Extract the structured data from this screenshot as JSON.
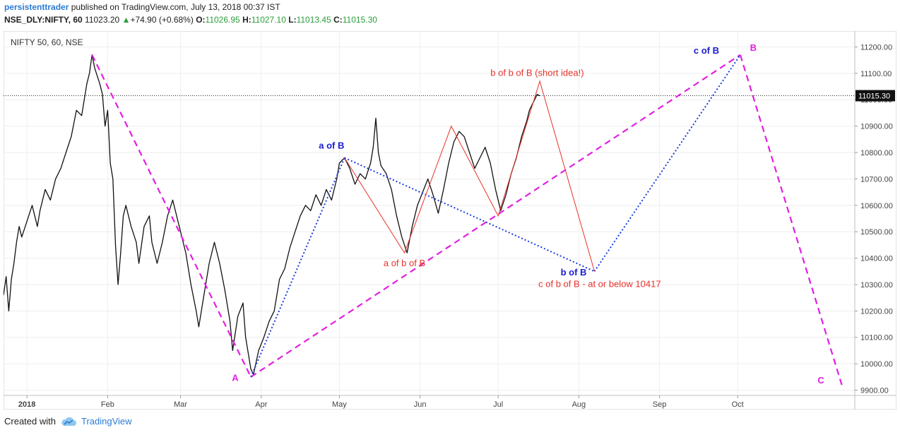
{
  "header": {
    "author": "persistenttrader",
    "published": "published on TradingView.com, July 13, 2018 00:37 IST",
    "symbol": "NSE_DLY:NIFTY, 60",
    "last": "11023.20",
    "change": "+74.90 (+0.68%)",
    "o_label": "O:",
    "o_value": "11026.95",
    "h_label": "H:",
    "h_value": "11027.10",
    "l_label": "L:",
    "l_value": "11013.45",
    "c_label": "C:",
    "c_value": "11015.30",
    "up_color": "#2a9d3a"
  },
  "footer": {
    "created_with": "Created with",
    "brand": "TradingView"
  },
  "chart_data": {
    "type": "line",
    "title": "NIFTY 50, 60, NSE",
    "ylim": [
      9880,
      11260
    ],
    "xlim_days": [
      -9,
      318
    ],
    "y_ticks": [
      9900,
      10000,
      10100,
      10200,
      10300,
      10400,
      10500,
      10600,
      10700,
      10800,
      10900,
      11000,
      11100,
      11200
    ],
    "y_tick_labels": [
      "9900.00",
      "10000.00",
      "10100.00",
      "10200.00",
      "10300.00",
      "10400.00",
      "10500.00",
      "10600.00",
      "10700.00",
      "10800.00",
      "10900.00",
      "11000.00",
      "11100.00",
      "11200.00"
    ],
    "x_ticks": [
      {
        "day": 0,
        "label": "2018",
        "bold": true
      },
      {
        "day": 31,
        "label": "Feb"
      },
      {
        "day": 59,
        "label": "Mar"
      },
      {
        "day": 90,
        "label": "Apr"
      },
      {
        "day": 120,
        "label": "May"
      },
      {
        "day": 151,
        "label": "Jun"
      },
      {
        "day": 181,
        "label": "Jul"
      },
      {
        "day": 212,
        "label": "Aug"
      },
      {
        "day": 243,
        "label": "Sep"
      },
      {
        "day": 273,
        "label": "Oct"
      }
    ],
    "last_price": 11015.3,
    "last_price_label": "11015.30",
    "price_series": {
      "name": "NIFTY 50 hourly",
      "points": [
        [
          -9,
          10260
        ],
        [
          -8,
          10330
        ],
        [
          -7,
          10200
        ],
        [
          -6,
          10320
        ],
        [
          -5,
          10380
        ],
        [
          -4,
          10460
        ],
        [
          -3,
          10520
        ],
        [
          -2,
          10480
        ],
        [
          0,
          10540
        ],
        [
          2,
          10600
        ],
        [
          4,
          10520
        ],
        [
          5,
          10580
        ],
        [
          7,
          10660
        ],
        [
          9,
          10620
        ],
        [
          11,
          10700
        ],
        [
          13,
          10740
        ],
        [
          15,
          10800
        ],
        [
          17,
          10860
        ],
        [
          19,
          10960
        ],
        [
          21,
          10940
        ],
        [
          23,
          11060
        ],
        [
          24,
          11100
        ],
        [
          25,
          11170
        ],
        [
          26,
          11120
        ],
        [
          28,
          11060
        ],
        [
          29,
          11020
        ],
        [
          30,
          10900
        ],
        [
          31,
          10960
        ],
        [
          32,
          10760
        ],
        [
          33,
          10700
        ],
        [
          34,
          10450
        ],
        [
          35,
          10300
        ],
        [
          36,
          10420
        ],
        [
          37,
          10560
        ],
        [
          38,
          10600
        ],
        [
          40,
          10520
        ],
        [
          42,
          10460
        ],
        [
          43,
          10380
        ],
        [
          45,
          10520
        ],
        [
          47,
          10560
        ],
        [
          48,
          10460
        ],
        [
          50,
          10380
        ],
        [
          52,
          10460
        ],
        [
          54,
          10560
        ],
        [
          56,
          10620
        ],
        [
          57,
          10580
        ],
        [
          59,
          10500
        ],
        [
          61,
          10420
        ],
        [
          63,
          10300
        ],
        [
          65,
          10200
        ],
        [
          66,
          10140
        ],
        [
          68,
          10260
        ],
        [
          70,
          10380
        ],
        [
          72,
          10460
        ],
        [
          74,
          10380
        ],
        [
          76,
          10280
        ],
        [
          78,
          10160
        ],
        [
          79,
          10050
        ],
        [
          81,
          10180
        ],
        [
          83,
          10230
        ],
        [
          84,
          10100
        ],
        [
          86,
          9980
        ],
        [
          87,
          9960
        ],
        [
          89,
          10050
        ],
        [
          91,
          10100
        ],
        [
          93,
          10160
        ],
        [
          95,
          10200
        ],
        [
          97,
          10320
        ],
        [
          99,
          10360
        ],
        [
          101,
          10440
        ],
        [
          103,
          10500
        ],
        [
          105,
          10560
        ],
        [
          107,
          10600
        ],
        [
          109,
          10580
        ],
        [
          111,
          10640
        ],
        [
          113,
          10600
        ],
        [
          115,
          10660
        ],
        [
          117,
          10620
        ],
        [
          119,
          10700
        ],
        [
          120,
          10760
        ],
        [
          122,
          10780
        ],
        [
          124,
          10740
        ],
        [
          126,
          10680
        ],
        [
          128,
          10720
        ],
        [
          130,
          10700
        ],
        [
          132,
          10760
        ],
        [
          133,
          10820
        ],
        [
          134,
          10930
        ],
        [
          135,
          10800
        ],
        [
          136,
          10750
        ],
        [
          138,
          10720
        ],
        [
          140,
          10660
        ],
        [
          142,
          10560
        ],
        [
          144,
          10480
        ],
        [
          146,
          10420
        ],
        [
          148,
          10520
        ],
        [
          150,
          10600
        ],
        [
          152,
          10650
        ],
        [
          154,
          10700
        ],
        [
          156,
          10640
        ],
        [
          158,
          10570
        ],
        [
          160,
          10660
        ],
        [
          162,
          10760
        ],
        [
          164,
          10840
        ],
        [
          166,
          10880
        ],
        [
          168,
          10860
        ],
        [
          170,
          10800
        ],
        [
          172,
          10740
        ],
        [
          174,
          10780
        ],
        [
          176,
          10820
        ],
        [
          178,
          10760
        ],
        [
          180,
          10660
        ],
        [
          182,
          10580
        ],
        [
          184,
          10640
        ],
        [
          186,
          10720
        ],
        [
          188,
          10780
        ],
        [
          190,
          10860
        ],
        [
          192,
          10920
        ],
        [
          193,
          10960
        ],
        [
          195,
          11000
        ],
        [
          196,
          11020
        ],
        [
          197,
          11015
        ]
      ]
    },
    "wave_lines": [
      {
        "name": "A-leg",
        "color": "#e21fe0",
        "style": "dashed",
        "points": [
          [
            25,
            11170
          ],
          [
            86,
            9950
          ]
        ]
      },
      {
        "name": "A-to-B",
        "color": "#e21fe0",
        "style": "dashed",
        "points": [
          [
            86,
            9950
          ],
          [
            274,
            11170
          ]
        ]
      },
      {
        "name": "B-to-C",
        "color": "#e21fe0",
        "style": "dashed",
        "points": [
          [
            274,
            11170
          ],
          [
            313,
            9920
          ]
        ]
      },
      {
        "name": "A-to-aB",
        "color": "#1a3ce0",
        "style": "dotted",
        "points": [
          [
            86,
            9950
          ],
          [
            122,
            10780
          ]
        ]
      },
      {
        "name": "aB-to-bB",
        "color": "#1a3ce0",
        "style": "dotted",
        "points": [
          [
            122,
            10780
          ],
          [
            218,
            10350
          ]
        ]
      },
      {
        "name": "bB-to-cB",
        "color": "#1a3ce0",
        "style": "dotted",
        "points": [
          [
            218,
            10350
          ],
          [
            274,
            11170
          ]
        ]
      },
      {
        "name": "b-of-B-zigzag",
        "color": "#e8312b",
        "style": "solid",
        "points": [
          [
            122,
            10780
          ],
          [
            145,
            10420
          ],
          [
            163,
            10900
          ],
          [
            181,
            10560
          ],
          [
            197,
            11070
          ],
          [
            218,
            10350
          ]
        ]
      }
    ],
    "annotations": [
      {
        "text": "A",
        "day": 80,
        "price": 9935,
        "color": "#e21fe0",
        "bold": true
      },
      {
        "text": "B",
        "day": 279,
        "price": 11185,
        "color": "#e21fe0",
        "bold": true
      },
      {
        "text": "C",
        "day": 305,
        "price": 9925,
        "color": "#e21fe0",
        "bold": true
      },
      {
        "text": "a of B",
        "day": 117,
        "price": 10815,
        "color": "#1a1ad0",
        "bold": true
      },
      {
        "text": "b of B",
        "day": 210,
        "price": 10335,
        "color": "#1a1ad0",
        "bold": true
      },
      {
        "text": "c of B",
        "day": 261,
        "price": 11175,
        "color": "#1a1ad0",
        "bold": true
      },
      {
        "text": "a of b of B",
        "day": 145,
        "price": 10370,
        "color": "#e8312b",
        "bold": false
      },
      {
        "text": "b of b of B (short idea!)",
        "day": 196,
        "price": 11090,
        "color": "#e8312b",
        "bold": false
      },
      {
        "text": "c of b of B - at or below 10417",
        "day": 220,
        "price": 10290,
        "color": "#e8312b",
        "bold": false
      }
    ]
  }
}
